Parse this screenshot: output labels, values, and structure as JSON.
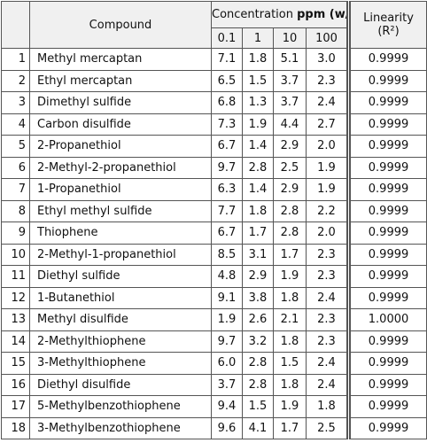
{
  "header": {
    "compound": "Compound",
    "concentration": "Concentration",
    "concentration_unit": "ppm (w/w)",
    "levels": [
      "0.1",
      "1",
      "10",
      "100"
    ],
    "linearity": "Linearity",
    "linearity_unit": "(R²)"
  },
  "table": {
    "rows": [
      [
        "1",
        "Methyl mercaptan",
        "7.1",
        "1.8",
        "5.1",
        "3.0",
        "0.9999"
      ],
      [
        "2",
        "Ethyl mercaptan",
        "6.5",
        "1.5",
        "3.7",
        "2.3",
        "0.9999"
      ],
      [
        "3",
        "Dimethyl sulfide",
        "6.8",
        "1.3",
        "3.7",
        "2.4",
        "0.9999"
      ],
      [
        "4",
        "Carbon disulfide",
        "7.3",
        "1.9",
        "4.4",
        "2.7",
        "0.9999"
      ],
      [
        "5",
        "2-Propanethiol",
        "6.7",
        "1.4",
        "2.9",
        "2.0",
        "0.9999"
      ],
      [
        "6",
        "2-Methyl-2-propanethiol",
        "9.7",
        "2.8",
        "2.5",
        "1.9",
        "0.9999"
      ],
      [
        "7",
        "1-Propanethiol",
        "6.3",
        "1.4",
        "2.9",
        "1.9",
        "0.9999"
      ],
      [
        "8",
        "Ethyl methyl sulfide",
        "7.7",
        "1.8",
        "2.8",
        "2.2",
        "0.9999"
      ],
      [
        "9",
        "Thiophene",
        "6.7",
        "1.7",
        "2.8",
        "2.0",
        "0.9999"
      ],
      [
        "10",
        "2-Methyl-1-propanethiol",
        "8.5",
        "3.1",
        "1.7",
        "2.3",
        "0.9999"
      ],
      [
        "11",
        "Diethyl sulfide",
        "4.8",
        "2.9",
        "1.9",
        "2.3",
        "0.9999"
      ],
      [
        "12",
        "1-Butanethiol",
        "9.1",
        "3.8",
        "1.8",
        "2.4",
        "0.9999"
      ],
      [
        "13",
        "Methyl disulfide",
        "1.9",
        "2.6",
        "2.1",
        "2.3",
        "1.0000"
      ],
      [
        "14",
        "2-Methylthiophene",
        "9.7",
        "3.2",
        "1.8",
        "2.3",
        "0.9999"
      ],
      [
        "15",
        "3-Methylthiophene",
        "6.0",
        "2.8",
        "1.5",
        "2.4",
        "0.9999"
      ],
      [
        "16",
        "Diethyl disulfide",
        "3.7",
        "2.8",
        "1.8",
        "2.4",
        "0.9999"
      ],
      [
        "17",
        "5-Methylbenzothiophene",
        "9.4",
        "1.5",
        "1.9",
        "1.8",
        "0.9999"
      ],
      [
        "18",
        "3-Methylbenzothiophene",
        "9.6",
        "4.1",
        "1.7",
        "2.5",
        "0.9999"
      ]
    ]
  }
}
